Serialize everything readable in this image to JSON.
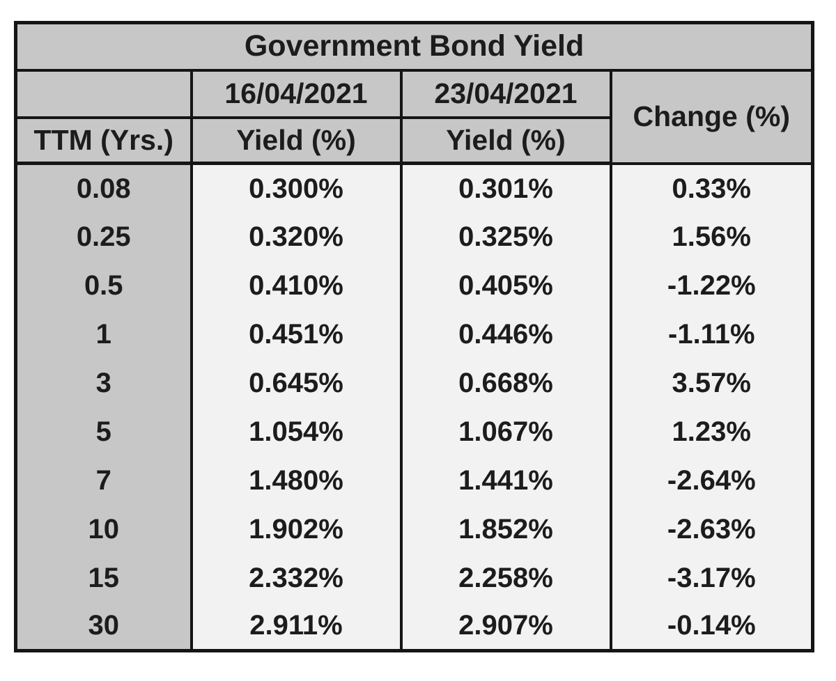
{
  "table": {
    "title": "Government Bond Yield",
    "columns": {
      "ttm_label": "TTM (Yrs.)",
      "date1": "16/04/2021",
      "date2": "23/04/2021",
      "yield1_label": "Yield (%)",
      "yield2_label": "Yield (%)",
      "change_label": "Change (%)"
    },
    "rows": [
      {
        "ttm": "0.08",
        "yield1": "0.300%",
        "yield2": "0.301%",
        "change": "0.33%"
      },
      {
        "ttm": "0.25",
        "yield1": "0.320%",
        "yield2": "0.325%",
        "change": "1.56%"
      },
      {
        "ttm": "0.5",
        "yield1": "0.410%",
        "yield2": "0.405%",
        "change": "-1.22%"
      },
      {
        "ttm": "1",
        "yield1": "0.451%",
        "yield2": "0.446%",
        "change": "-1.11%"
      },
      {
        "ttm": "3",
        "yield1": "0.645%",
        "yield2": "0.668%",
        "change": "3.57%"
      },
      {
        "ttm": "5",
        "yield1": "1.054%",
        "yield2": "1.067%",
        "change": "1.23%"
      },
      {
        "ttm": "7",
        "yield1": "1.480%",
        "yield2": "1.441%",
        "change": "-2.64%"
      },
      {
        "ttm": "10",
        "yield1": "1.902%",
        "yield2": "1.852%",
        "change": "-2.63%"
      },
      {
        "ttm": "15",
        "yield1": "2.332%",
        "yield2": "2.258%",
        "change": "-3.17%"
      },
      {
        "ttm": "30",
        "yield1": "2.911%",
        "yield2": "2.907%",
        "change": "-0.14%"
      }
    ]
  },
  "colors": {
    "header_bg": "#c7c7c7",
    "cell_bg": "#f2f2f2",
    "border": "#151515",
    "text": "#1c1c1c",
    "page_bg": "#ffffff"
  },
  "chart_data": {
    "type": "table",
    "title": "Government Bond Yield",
    "columns": [
      "TTM (Yrs.)",
      "Yield (%) 16/04/2021",
      "Yield (%) 23/04/2021",
      "Change (%)"
    ],
    "ttm_years": [
      0.08,
      0.25,
      0.5,
      1,
      3,
      5,
      7,
      10,
      15,
      30
    ],
    "series": [
      {
        "name": "Yield (%) 16/04/2021",
        "values": [
          0.3,
          0.32,
          0.41,
          0.451,
          0.645,
          1.054,
          1.48,
          1.902,
          2.332,
          2.911
        ]
      },
      {
        "name": "Yield (%) 23/04/2021",
        "values": [
          0.301,
          0.325,
          0.405,
          0.446,
          0.668,
          1.067,
          1.441,
          1.852,
          2.258,
          2.907
        ]
      },
      {
        "name": "Change (%)",
        "values": [
          0.33,
          1.56,
          -1.22,
          -1.11,
          3.57,
          1.23,
          -2.64,
          -2.63,
          -3.17,
          -0.14
        ]
      }
    ]
  }
}
